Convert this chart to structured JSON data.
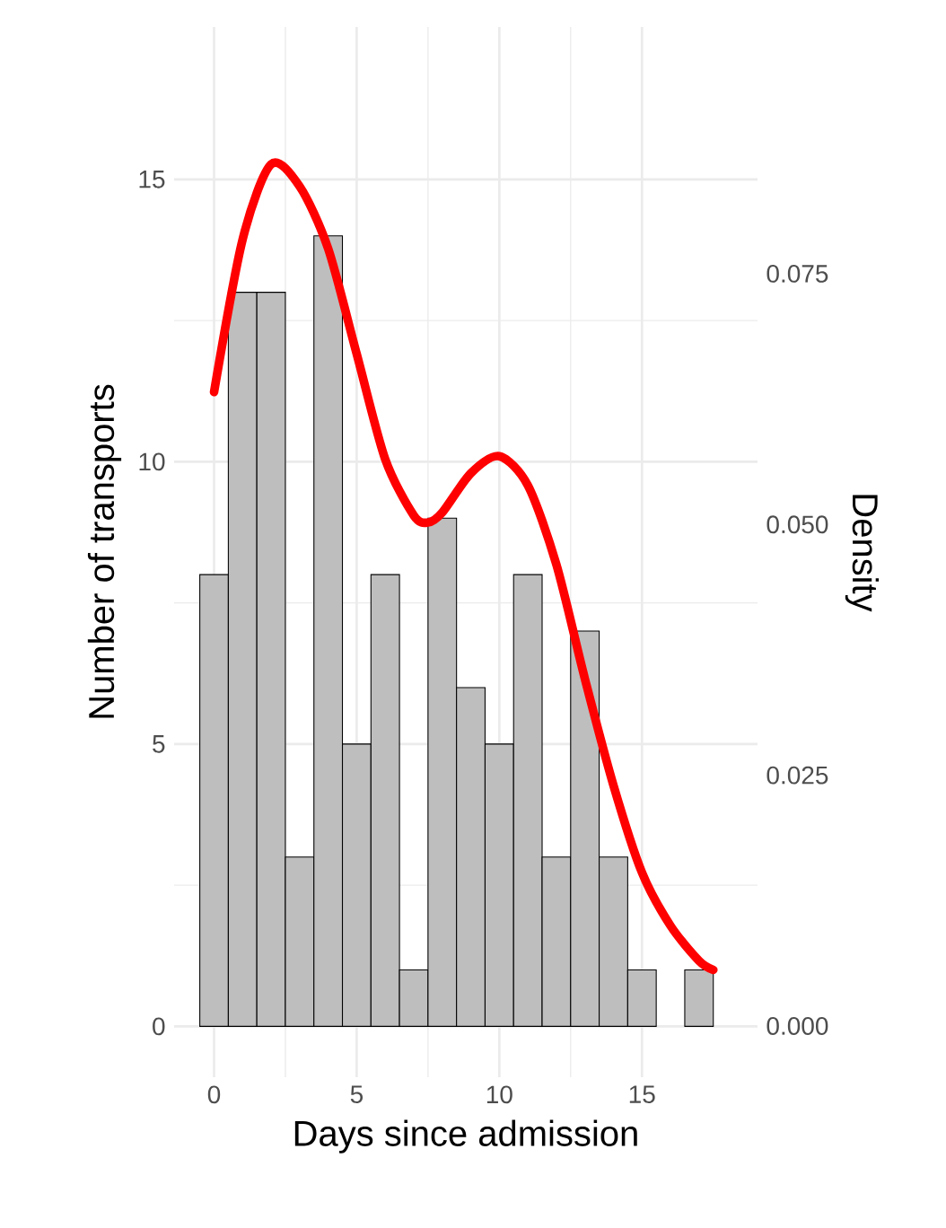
{
  "chart_data": {
    "type": "histogram",
    "xlabel": "Days since admission",
    "ylabel": "Number of transports",
    "y2label": "Density",
    "xlim": [
      -1.4,
      19.05
    ],
    "xticks": [
      0,
      5,
      10,
      15
    ],
    "ylim": [
      -0.9,
      17.7
    ],
    "yticks": [
      0,
      5,
      10,
      15
    ],
    "y2lim": [
      -0.0051,
      0.0996
    ],
    "y2ticks": [
      {
        "value": 0,
        "label": "0.000"
      },
      {
        "value": 0.025,
        "label": "0.025"
      },
      {
        "value": 0.05,
        "label": "0.050"
      },
      {
        "value": 0.075,
        "label": "0.075"
      }
    ],
    "grid": true,
    "series": [
      {
        "color": "#bebebe",
        "bins": [
          -0.5,
          0.5,
          1.5,
          2.5,
          3.5,
          4.5,
          5.5,
          6.5,
          7.5,
          8.5,
          9.5,
          10.5,
          11.5,
          12.5,
          13.5,
          14.5,
          15.5,
          16.5,
          17.5
        ],
        "values": [
          8,
          13,
          13,
          3,
          14,
          5,
          8,
          1,
          9,
          6,
          5,
          8,
          3,
          7,
          3,
          1,
          0,
          1
        ]
      },
      {
        "type": "line",
        "axis": "y2",
        "color": "#ff0000",
        "x": [
          0,
          1,
          2,
          3,
          4,
          5,
          6,
          7,
          7.5,
          8,
          9,
          10,
          11,
          12,
          13,
          14,
          15,
          16,
          17,
          17.5
        ],
        "values": [
          0.0632,
          0.0784,
          0.0859,
          0.0837,
          0.0775,
          0.067,
          0.0565,
          0.0509,
          0.0502,
          0.0512,
          0.0551,
          0.0568,
          0.0539,
          0.046,
          0.0346,
          0.024,
          0.0153,
          0.01,
          0.0065,
          0.0056
        ]
      }
    ]
  }
}
